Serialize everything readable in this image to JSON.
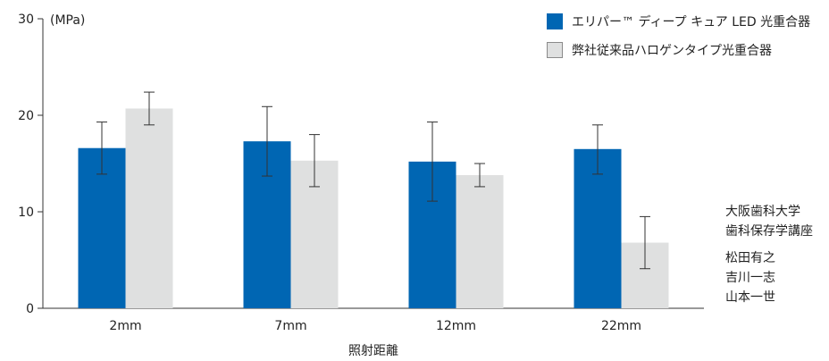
{
  "chart_data": {
    "type": "bar",
    "ylabel": "(MPa)",
    "xlabel": "照射距離",
    "ylim": [
      0,
      30
    ],
    "yticks": [
      0,
      10,
      20,
      30
    ],
    "categories": [
      "2mm",
      "7mm",
      "12mm",
      "22mm"
    ],
    "series": [
      {
        "name": "エリパー™ ディープ キュア LED 光重合器",
        "color": "#0066b3",
        "values": [
          16.6,
          17.3,
          15.2,
          16.5
        ],
        "err_low": [
          13.9,
          13.7,
          11.1,
          13.9
        ],
        "err_high": [
          19.3,
          20.9,
          19.3,
          19.0
        ]
      },
      {
        "name": "弊社従来品ハロゲンタイプ光重合器",
        "color": "#dfe0e0",
        "values": [
          20.7,
          15.3,
          13.8,
          6.8
        ],
        "err_low": [
          19.0,
          12.6,
          12.6,
          4.1
        ],
        "err_high": [
          22.4,
          18.0,
          15.0,
          9.5
        ]
      }
    ],
    "legend_position": "top-right",
    "grid": false
  },
  "credits": {
    "university": "大阪歯科大学",
    "department": "歯科保存学講座",
    "authors": [
      "松田有之",
      "吉川一志",
      "山本一世"
    ]
  }
}
